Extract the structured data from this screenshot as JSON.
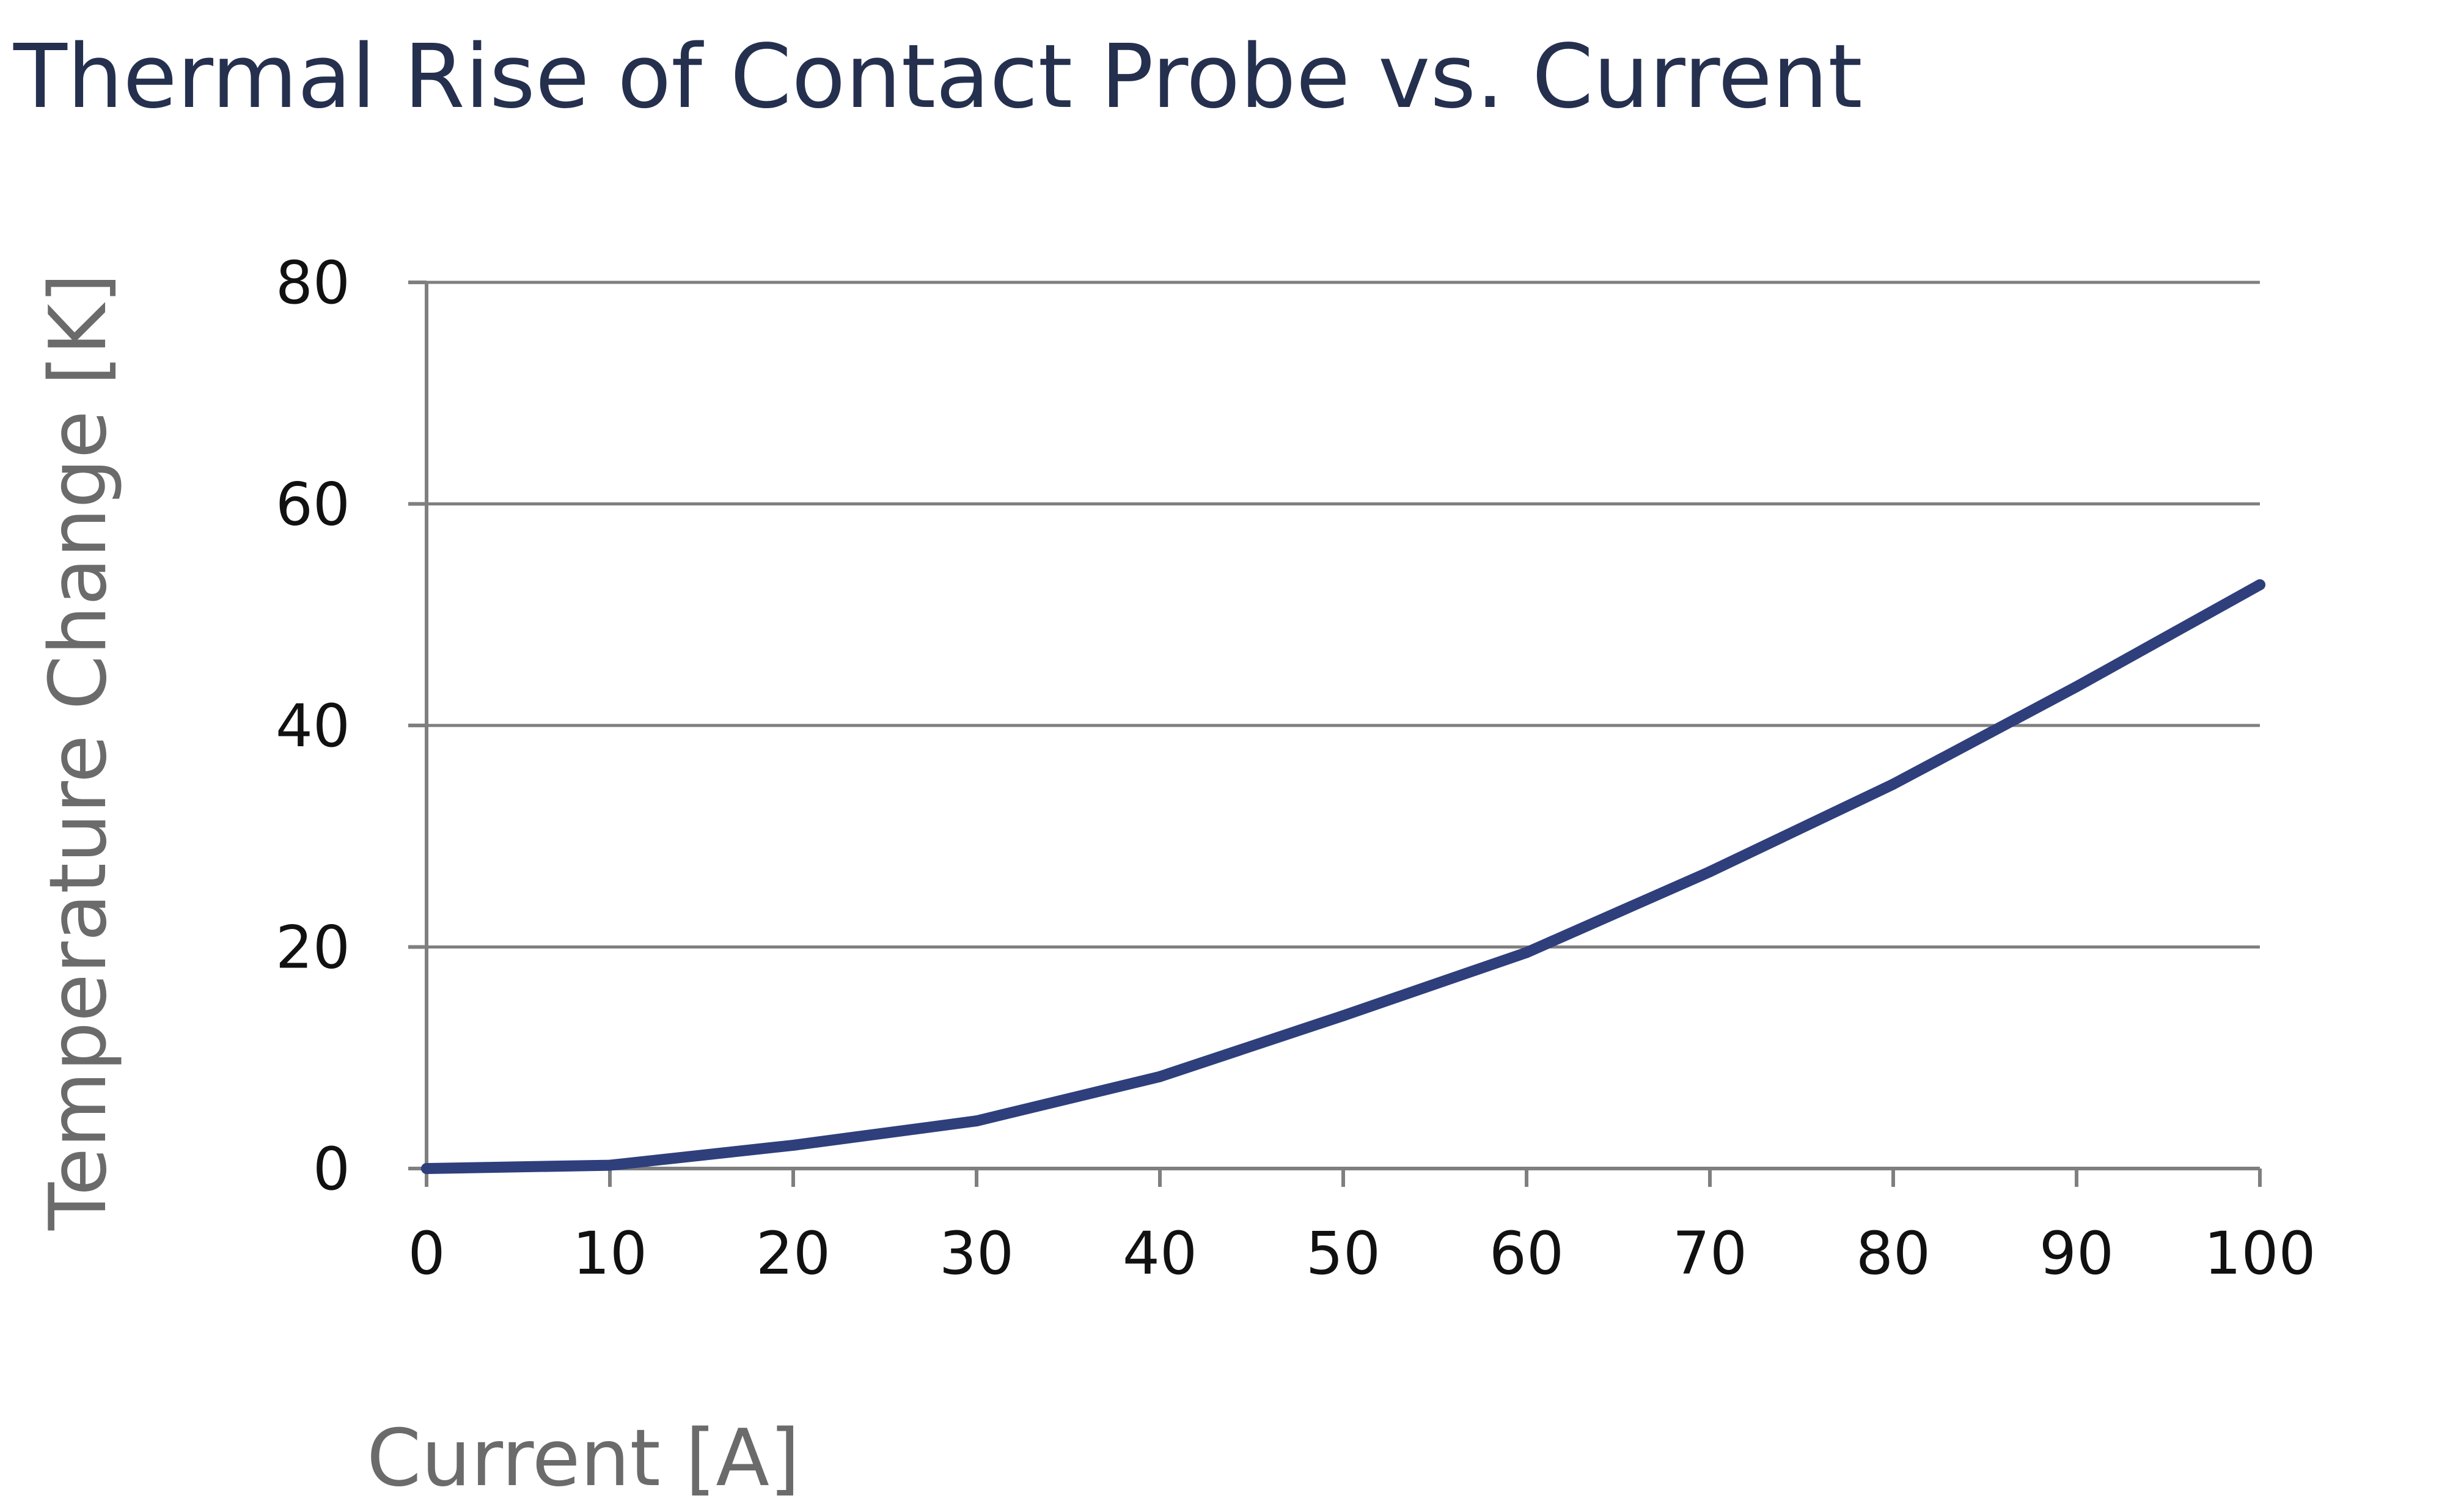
{
  "chart_data": {
    "type": "line",
    "title": "Thermal Rise of Contact Probe vs. Current",
    "xlabel": "Current [A]",
    "ylabel": "Temperature Change [K]",
    "x": [
      0,
      10,
      20,
      30,
      40,
      50,
      60,
      70,
      80,
      90,
      100
    ],
    "series": [
      {
        "values": [
          0,
          0.3,
          2.1,
          4.3,
          8.3,
          13.8,
          19.5,
          26.8,
          34.7,
          43.5,
          52.7
        ],
        "color": "#2e3f7c"
      }
    ],
    "xlim": [
      0,
      100
    ],
    "ylim": [
      0,
      80
    ],
    "xticks": [
      "0",
      "10",
      "20",
      "30",
      "40",
      "50",
      "60",
      "70",
      "80",
      "90",
      "100"
    ],
    "yticks": [
      "0",
      "20",
      "40",
      "60",
      "80"
    ],
    "grid": "horizontal",
    "legend": "none"
  }
}
